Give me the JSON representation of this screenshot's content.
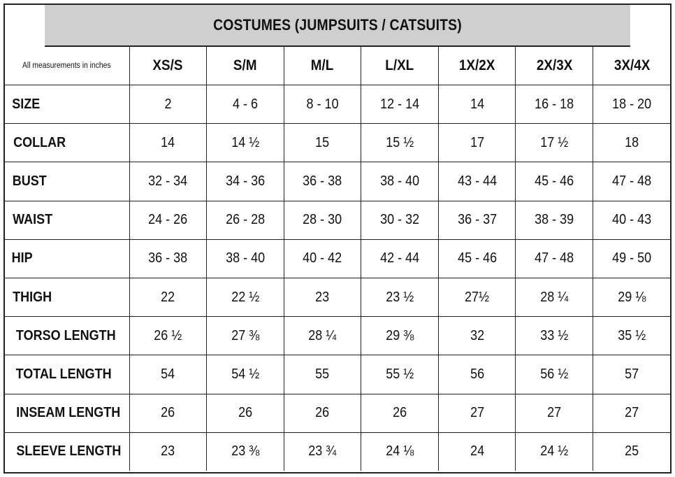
{
  "title": "COSTUMES (JUMPSUITS / CATSUITS)",
  "note": "All measurements in inches",
  "sizes": [
    "XS/S",
    "S/M",
    "M/L",
    "L/XL",
    "1X/2X",
    "2X/3X",
    "3X/4X"
  ],
  "rows": [
    {
      "label": "SIZE",
      "values": [
        "2",
        "4 - 6",
        "8 - 10",
        "12 - 14",
        "14",
        "16 - 18",
        "18 - 20"
      ]
    },
    {
      "label": "COLLAR",
      "values": [
        "14",
        "14 ½",
        "15",
        "15 ½",
        "17",
        "17 ½",
        "18"
      ]
    },
    {
      "label": "BUST",
      "values": [
        "32 - 34",
        "34 - 36",
        "36 - 38",
        "38 - 40",
        "43 - 44",
        "45 - 46",
        "47 - 48"
      ]
    },
    {
      "label": "WAIST",
      "values": [
        "24 - 26",
        "26 - 28",
        "28 - 30",
        "30 - 32",
        "36 - 37",
        "38 - 39",
        "40 - 43"
      ]
    },
    {
      "label": "HIP",
      "values": [
        "36 - 38",
        "38 - 40",
        "40 - 42",
        "42 - 44",
        "45 - 46",
        "47 - 48",
        "49 - 50"
      ]
    },
    {
      "label": "THIGH",
      "values": [
        "22",
        "22 ½",
        "23",
        "23 ½",
        "27½",
        "28 ¼",
        "29 ⅛"
      ]
    },
    {
      "label": "TORSO LENGTH",
      "values": [
        "26 ½",
        "27 ⅜",
        "28 ¼",
        "29 ⅜",
        "32",
        "33 ½",
        "35 ½"
      ]
    },
    {
      "label": "TOTAL LENGTH",
      "values": [
        "54",
        "54 ½",
        "55",
        "55 ½",
        "56",
        "56 ½",
        "57"
      ]
    },
    {
      "label": "INSEAM LENGTH",
      "values": [
        "26",
        "26",
        "26",
        "26",
        "27",
        "27",
        "27"
      ]
    },
    {
      "label": "SLEEVE LENGTH",
      "values": [
        "23",
        "23 ⅜",
        "23 ¾",
        "24 ⅛",
        "24",
        "24 ½",
        "25"
      ]
    }
  ]
}
